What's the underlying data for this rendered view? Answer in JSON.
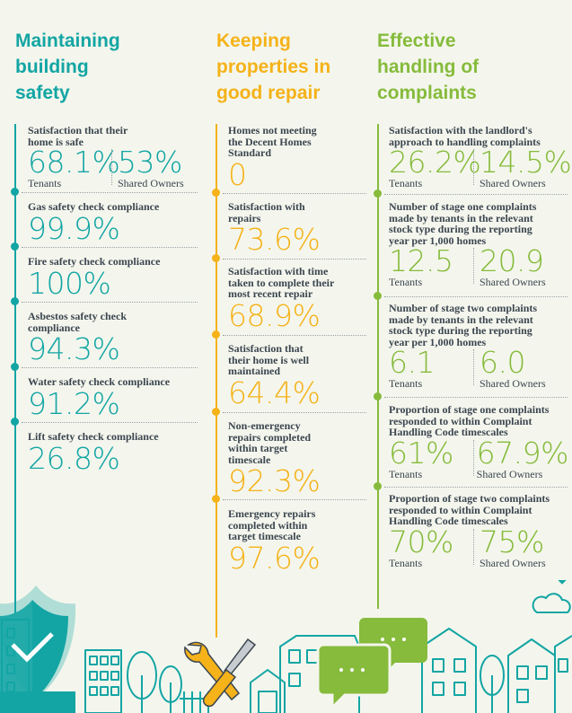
{
  "columns": {
    "safety": {
      "title": [
        "Maintaining",
        "building",
        "safety"
      ],
      "items": {
        "satisfaction_safe": {
          "label": [
            "Satisfaction that their",
            "home is safe"
          ],
          "tenants_value": "68.1%",
          "tenants_label": "Tenants",
          "owners_value": "53%",
          "owners_label": "Shared Owners"
        },
        "gas": {
          "label": [
            "Gas safety check compliance"
          ],
          "value": "99.9%"
        },
        "fire": {
          "label": [
            "Fire safety check compliance"
          ],
          "value": "100%"
        },
        "asbestos": {
          "label": [
            "Asbestos safety check",
            "compliance"
          ],
          "value": "94.3%"
        },
        "water": {
          "label": [
            "Water safety check compliance"
          ],
          "value": "91.2%"
        },
        "lift": {
          "label": [
            "Lift safety check compliance"
          ],
          "value": "26.8%"
        }
      }
    },
    "repair": {
      "title": [
        "Keeping",
        "properties in",
        "good repair"
      ],
      "items": {
        "decent_homes": {
          "label": [
            "Homes not meeting",
            "the Decent Homes",
            "Standard"
          ],
          "value": "0"
        },
        "sat_repairs": {
          "label": [
            "Satisfaction with",
            "repairs"
          ],
          "value": "73.6%"
        },
        "sat_time": {
          "label": [
            "Satisfaction with time",
            "taken to complete their",
            "most recent repair"
          ],
          "value": "68.9%"
        },
        "sat_maintained": {
          "label": [
            "Satisfaction that",
            "their home is well",
            "maintained"
          ],
          "value": "64.4%"
        },
        "non_emergency": {
          "label": [
            "Non-emergency",
            "repairs completed",
            "within target",
            "timescale"
          ],
          "value": "92.3%"
        },
        "emergency": {
          "label": [
            "Emergency repairs",
            "completed within",
            "target timescale"
          ],
          "value": "97.6%"
        }
      }
    },
    "complaints": {
      "title": [
        "Effective",
        "handling of",
        "complaints"
      ],
      "items": {
        "sat_handling": {
          "label": [
            "Satisfaction with the landlord's",
            "approach to handling complaints"
          ],
          "tenants_value": "26.2%",
          "tenants_label": "Tenants",
          "owners_value": "14.5%",
          "owners_label": "Shared Owners"
        },
        "stage_one": {
          "label": [
            "Number of stage one complaints",
            "made by tenants in the relevant",
            "stock type during the reporting",
            "year per 1,000 homes"
          ],
          "tenants_value": "12.5",
          "tenants_label": "Tenants",
          "owners_value": "20.9",
          "owners_label": "Shared Owners"
        },
        "stage_two": {
          "label": [
            "Number of stage two complaints",
            "made by tenants in the relevant",
            "stock type during the reporting",
            "year per 1,000 homes"
          ],
          "tenants_value": "6.1",
          "tenants_label": "Tenants",
          "owners_value": "6.0",
          "owners_label": "Shared Owners"
        },
        "prop_one": {
          "label": [
            "Proportion of stage one complaints",
            "responded to within Complaint",
            "Handling Code timescales"
          ],
          "tenants_value": "61%",
          "tenants_label": "Tenants",
          "owners_value": "67.9%",
          "owners_label": "Shared Owners"
        },
        "prop_two": {
          "label": [
            "Proportion of stage two complaints",
            "responded to within Complaint",
            "Handling Code timescales"
          ],
          "tenants_value": "70%",
          "tenants_label": "Tenants",
          "owners_value": "75%",
          "owners_label": "Shared Owners"
        }
      }
    }
  },
  "colors": {
    "teal": "#13a5a4",
    "yellow": "#f5b219",
    "green": "#86bb3c",
    "text": "#3c4650",
    "background": "#f4f6ed"
  },
  "icons": [
    "shield-icon",
    "wrench-icon",
    "screwdriver-icon",
    "speech-bubble-icon",
    "cloud-icon",
    "house-icon",
    "tree-icon"
  ]
}
